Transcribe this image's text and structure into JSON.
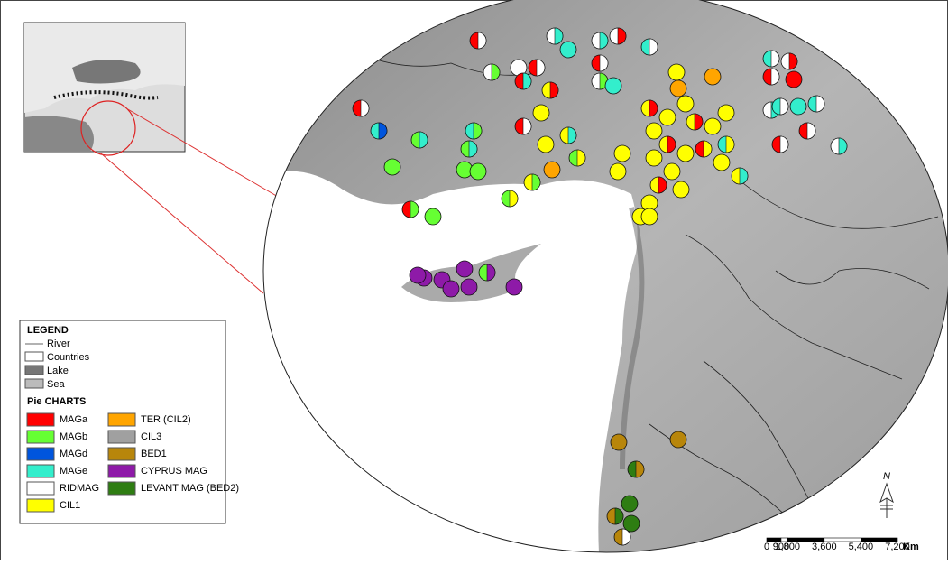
{
  "legend": {
    "title": "LEGEND",
    "items": [
      "River",
      "Countries",
      "Lake",
      "Sea"
    ],
    "pie_title": "Pie CHARTS",
    "pie_items": [
      {
        "label": "MAGa",
        "color": "#ff0000"
      },
      {
        "label": "MAGb",
        "color": "#66ff33"
      },
      {
        "label": "MAGd",
        "color": "#0055dd"
      },
      {
        "label": "MAGe",
        "color": "#33eecc"
      },
      {
        "label": "RIDMAG",
        "color": "#ffffff"
      },
      {
        "label": "CIL1",
        "color": "#ffff00"
      },
      {
        "label": "TER (CIL2)",
        "color": "#ffa500"
      },
      {
        "label": "CIL3",
        "color": "#a0a0a0"
      },
      {
        "label": "BED1",
        "color": "#b8860b"
      },
      {
        "label": "CYPRUS MAG",
        "color": "#8e1aa8"
      },
      {
        "label": "LEVANT MAG (BED2)",
        "color": "#2e7d12"
      }
    ]
  },
  "scale_bar": {
    "labels": [
      "0",
      "900",
      "1,800",
      "3,600",
      "5,400",
      "7,200"
    ],
    "unit": "Km"
  },
  "north_arrow": {
    "label": "N"
  }
}
